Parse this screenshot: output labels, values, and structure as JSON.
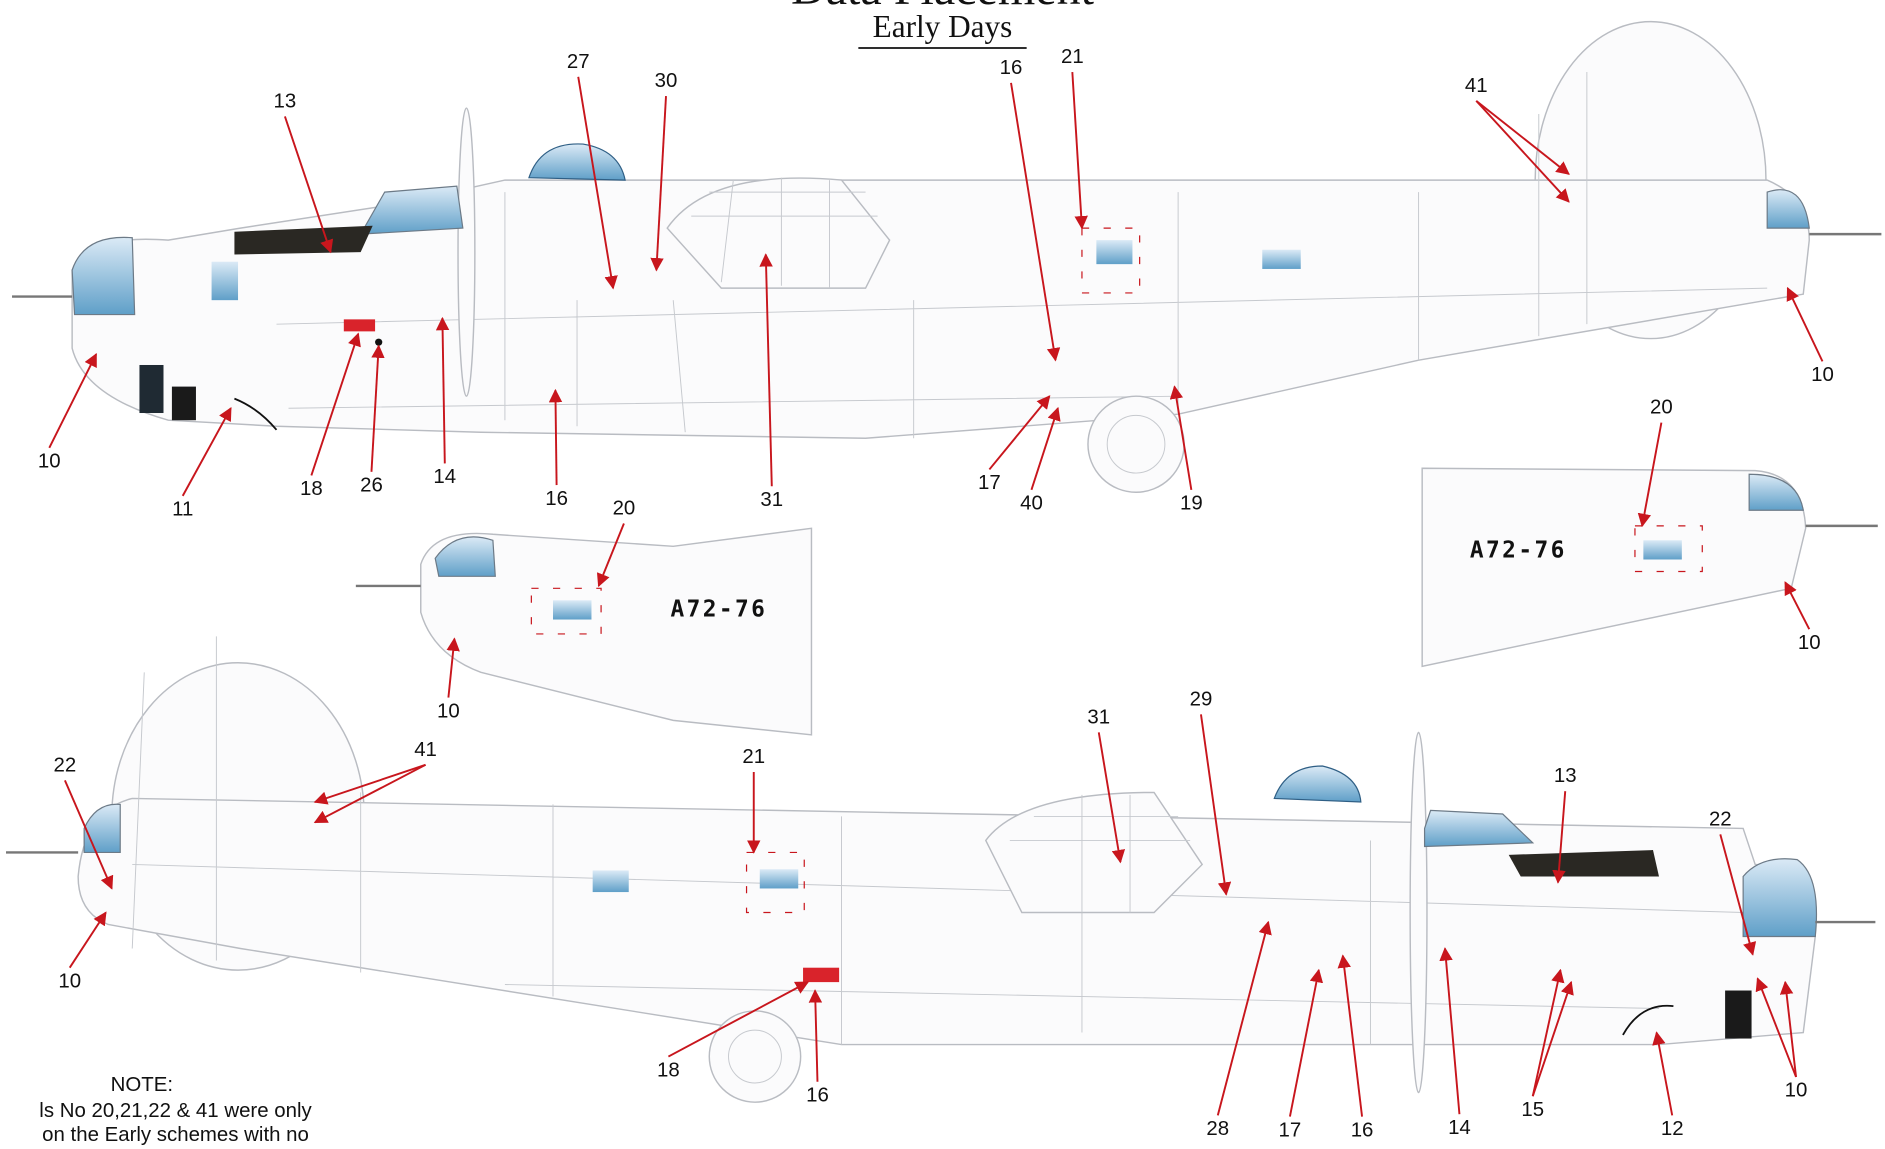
{
  "header": {
    "title": "Data Placement",
    "subtitle": "Early Days"
  },
  "registrations": [
    {
      "label": "A72-76"
    },
    {
      "label": "A72-76"
    }
  ],
  "callouts": [
    {
      "label": "13"
    },
    {
      "label": "27"
    },
    {
      "label": "30"
    },
    {
      "label": "16"
    },
    {
      "label": "21"
    },
    {
      "label": "41"
    },
    {
      "label": "10"
    },
    {
      "label": "10"
    },
    {
      "label": "11"
    },
    {
      "label": "18"
    },
    {
      "label": "26"
    },
    {
      "label": "14"
    },
    {
      "label": "16"
    },
    {
      "label": "31"
    },
    {
      "label": "17"
    },
    {
      "label": "40"
    },
    {
      "label": "19"
    },
    {
      "label": "20"
    },
    {
      "label": "10"
    },
    {
      "label": "20"
    },
    {
      "label": "10"
    },
    {
      "label": "22"
    },
    {
      "label": "41"
    },
    {
      "label": "10"
    },
    {
      "label": "21"
    },
    {
      "label": "31"
    },
    {
      "label": "29"
    },
    {
      "label": "13"
    },
    {
      "label": "22"
    },
    {
      "label": "18"
    },
    {
      "label": "16"
    },
    {
      "label": "28"
    },
    {
      "label": "17"
    },
    {
      "label": "16"
    },
    {
      "label": "14"
    },
    {
      "label": "15"
    },
    {
      "label": "12"
    },
    {
      "label": "10"
    }
  ],
  "note": {
    "heading": "NOTE:",
    "lines": [
      "ls No 20,21,22 & 41 were only",
      "on the Early schemes with no"
    ]
  }
}
